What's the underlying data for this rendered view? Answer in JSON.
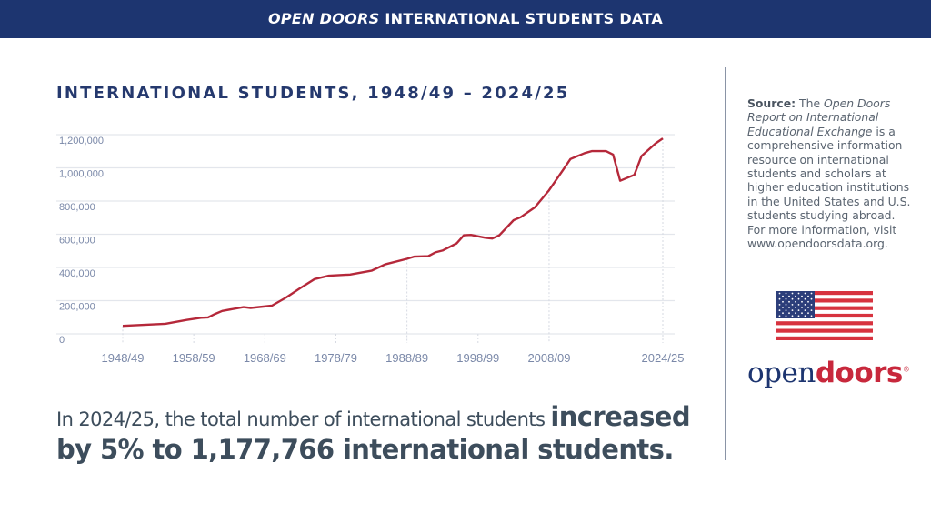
{
  "header": {
    "title_italic": "OPEN DOORS",
    "title_rest": " INTERNATIONAL STUDENTS DATA"
  },
  "source": {
    "label": "Source:",
    "pre": " The ",
    "italic": "Open Doors Report on International Educational Exchange",
    "post": " is a comprehensive information resource on international students and scholars at higher education institutions in the United States and U.S. students studying abroad. For more information, visit www.opendoorsdata.org."
  },
  "logo": {
    "part1": "open",
    "part2": "doors",
    "mark": "®"
  },
  "summary": {
    "plain": "In 2024/25, the total number of international students ",
    "bold": "increased by 5% to 1,177,766 international students."
  },
  "colors": {
    "header": "#1d3570",
    "line": "#b5283a",
    "axis_text": "#7a88a8"
  },
  "chart_data": {
    "type": "line",
    "title": "INTERNATIONAL STUDENTS, 1948/49 – 2024/25",
    "xlabel": "",
    "ylabel": "",
    "ylim": [
      0,
      1200000
    ],
    "xlim": [
      1948,
      2024
    ],
    "grid": true,
    "y_ticks": [
      {
        "v": 0,
        "label": "0"
      },
      {
        "v": 200000,
        "label": "200,000"
      },
      {
        "v": 400000,
        "label": "400,000"
      },
      {
        "v": 600000,
        "label": "600,000"
      },
      {
        "v": 800000,
        "label": "800,000"
      },
      {
        "v": 1000000,
        "label": "1,000,000"
      },
      {
        "v": 1200000,
        "label": "1,200,000"
      }
    ],
    "x_ticks": [
      {
        "v": 1948,
        "label": "1948/49"
      },
      {
        "v": 1958,
        "label": "1958/59"
      },
      {
        "v": 1968,
        "label": "1968/69"
      },
      {
        "v": 1978,
        "label": "1978/79"
      },
      {
        "v": 1988,
        "label": "1988/89"
      },
      {
        "v": 1998,
        "label": "1998/99"
      },
      {
        "v": 2008,
        "label": "2008/09"
      },
      {
        "v": 2024,
        "label": "2024/25"
      }
    ],
    "x": [
      1948,
      1954,
      1957,
      1959,
      1960,
      1961,
      1962,
      1965,
      1966,
      1969,
      1971,
      1973,
      1975,
      1977,
      1980,
      1983,
      1985,
      1988,
      1989,
      1991,
      1992,
      1993,
      1995,
      1996,
      1997,
      1999,
      2000,
      2001,
      2003,
      2004,
      2006,
      2008,
      2010,
      2011,
      2013,
      2014,
      2016,
      2017,
      2018,
      2020,
      2021,
      2023,
      2024
    ],
    "values": [
      48000,
      61000,
      84000,
      97000,
      99000,
      120000,
      138000,
      161000,
      156000,
      170000,
      219000,
      276000,
      330000,
      350000,
      357000,
      380000,
      420000,
      452000,
      465000,
      468000,
      491000,
      502000,
      545000,
      594000,
      596000,
      579000,
      574000,
      594000,
      685000,
      703000,
      762000,
      865000,
      990000,
      1053000,
      1089000,
      1101000,
      1101000,
      1080000,
      922000,
      958000,
      1071000,
      1148000,
      1177766
    ]
  }
}
